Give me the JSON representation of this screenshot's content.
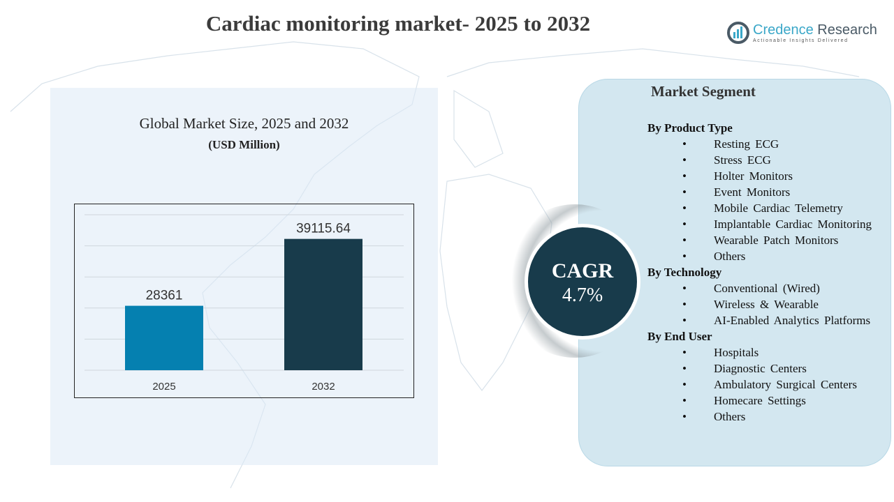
{
  "title": "Cardiac monitoring market- 2025 to 2032",
  "logo": {
    "name_a": "Credence",
    "name_b": "Research",
    "tagline": "Actionable Insights Delivered"
  },
  "chart_title": "Global Market Size, 2025 and 2032",
  "chart_subtitle": "(USD Million)",
  "chart_data": {
    "type": "bar",
    "categories": [
      "2025",
      "2032"
    ],
    "values": [
      28361,
      39115.64
    ],
    "value_labels": [
      "28361",
      "39115.64"
    ],
    "colors": [
      "#0580b0",
      "#183b4b"
    ],
    "ylim": [
      18000,
      43000
    ],
    "grid": true
  },
  "cagr": {
    "label": "CAGR",
    "value": "4.7%"
  },
  "segment": {
    "title": "Market Segment",
    "groups": [
      {
        "heading": "By Product Type",
        "items": [
          "Resting ECG",
          "Stress ECG",
          "Holter Monitors",
          "Event Monitors",
          "Mobile Cardiac Telemetry",
          "Implantable Cardiac Monitoring",
          "Wearable Patch Monitors",
          "Others"
        ]
      },
      {
        "heading": "By Technology",
        "items": [
          "Conventional (Wired)",
          "Wireless & Wearable",
          "AI-Enabled Analytics Platforms"
        ]
      },
      {
        "heading": "By End User",
        "items": [
          "Hospitals",
          "Diagnostic Centers",
          "Ambulatory Surgical Centers",
          "Homecare Settings",
          "Others"
        ]
      }
    ]
  }
}
